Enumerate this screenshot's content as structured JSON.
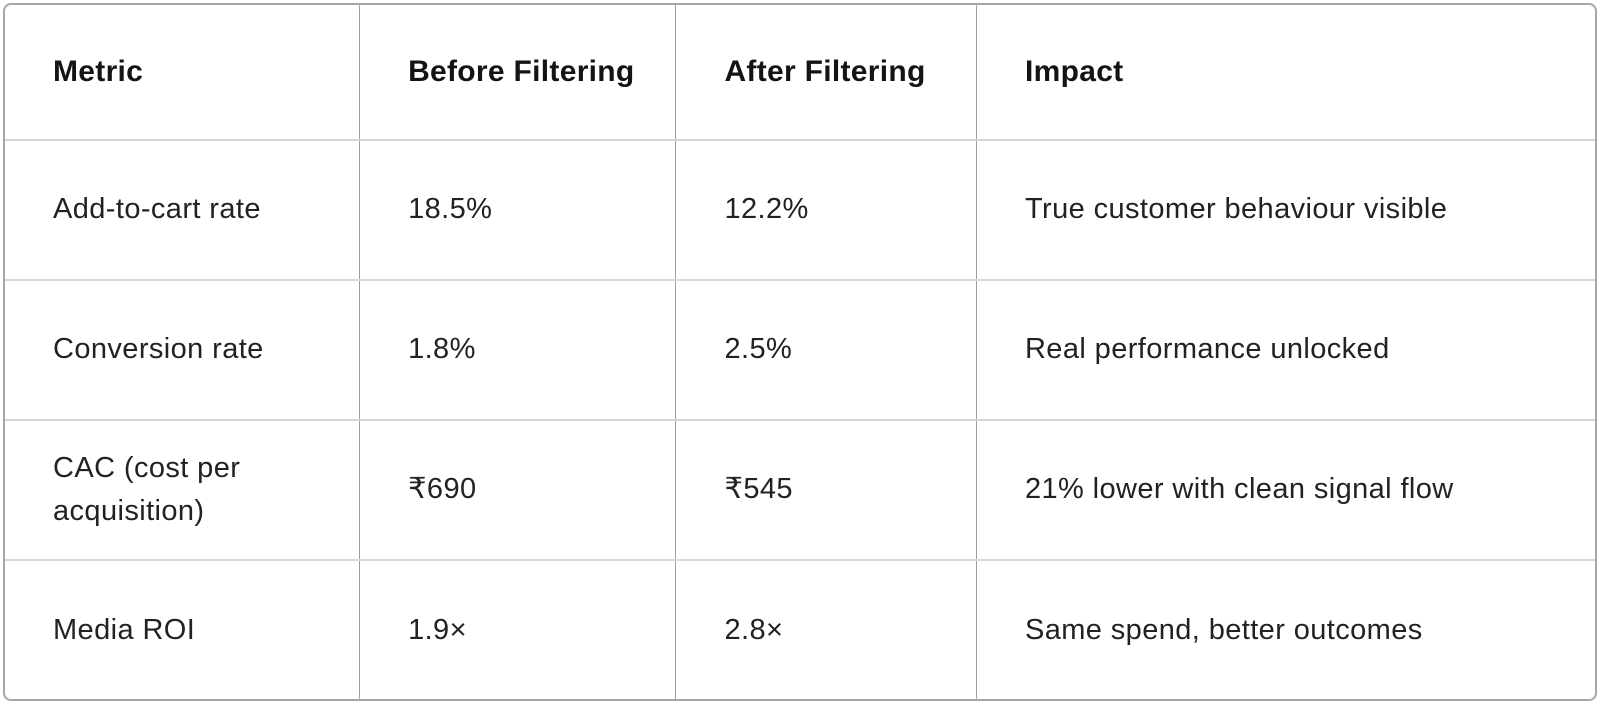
{
  "chart_data": {
    "type": "table",
    "columns": [
      "Metric",
      "Before Filtering",
      "After Filtering",
      "Impact"
    ],
    "rows": [
      [
        "Add-to-cart rate",
        "18.5%",
        "12.2%",
        "True customer behaviour visible"
      ],
      [
        "Conversion rate",
        "1.8%",
        "2.5%",
        "Real performance unlocked"
      ],
      [
        "CAC (cost per acquisition)",
        "₹690",
        "₹545",
        "21% lower with clean signal flow"
      ],
      [
        "Media ROI",
        "1.9×",
        "2.8×",
        "Same spend, better outcomes"
      ]
    ]
  },
  "table": {
    "columns": [
      {
        "label": "Metric"
      },
      {
        "label": "Before Filtering"
      },
      {
        "label": "After Filtering"
      },
      {
        "label": "Impact"
      }
    ],
    "rows": [
      {
        "metric": "Add-to-cart rate",
        "before": "18.5%",
        "after": "12.2%",
        "impact": "True customer behaviour visible"
      },
      {
        "metric": "Conversion rate",
        "before": "1.8%",
        "after": "2.5%",
        "impact": "Real performance unlocked"
      },
      {
        "metric": "CAC (cost per acquisition)",
        "before": "₹690",
        "after": "₹545",
        "impact": "21% lower with clean signal flow"
      },
      {
        "metric": "Media ROI",
        "before": "1.9×",
        "after": "2.8×",
        "impact": "Same spend, better outcomes"
      }
    ]
  },
  "colors": {
    "background": "#ffffff",
    "border_outer": "#a6a6a6",
    "border_vertical": "#9e9e9e",
    "border_horizontal": "#d6d6d6",
    "header_text": "#141414",
    "body_text": "#222222"
  }
}
